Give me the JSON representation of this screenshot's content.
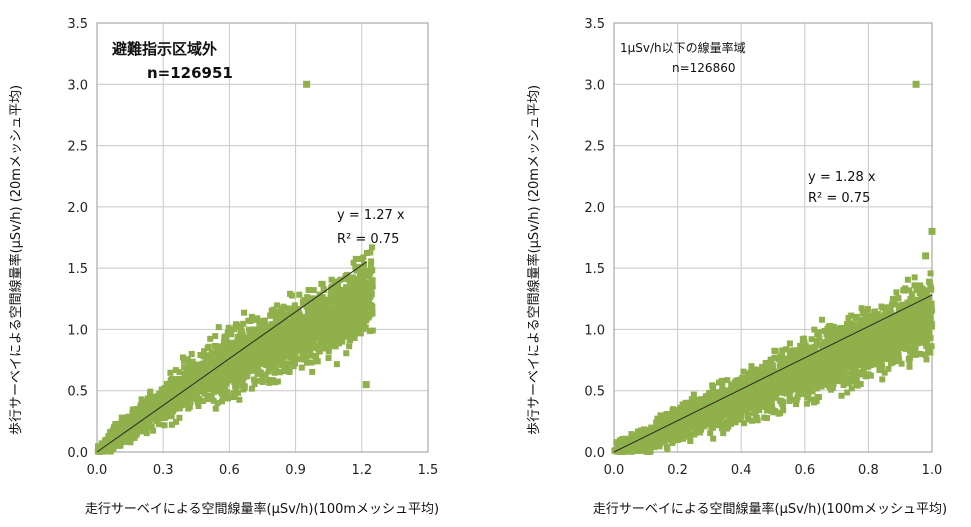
{
  "chart_data": [
    {
      "type": "scatter",
      "title": "避難指示区域外",
      "subtitle": "n=126951",
      "xlabel": "走行サーベイによる空間線量率(μSv/h)(100mメッシュ平均)",
      "ylabel": "歩行サーベイによる空間線量率(μSv/h) (20mメッシュ平均)",
      "xlim": [
        0,
        1.5
      ],
      "ylim": [
        0,
        3.5
      ],
      "xticks": [
        "0.0",
        "0.3",
        "0.6",
        "0.9",
        "1.2",
        "1.5"
      ],
      "yticks": [
        "0.0",
        "0.5",
        "1.0",
        "1.5",
        "2.0",
        "2.5",
        "3.0",
        "3.5"
      ],
      "grid": true,
      "point_color": "#8fb04a",
      "trendline": {
        "slope": 1.27,
        "x_range": [
          0,
          1.22
        ]
      },
      "equation": "y = 1.27 x",
      "r2": "R² = 0.75",
      "outliers": [
        [
          0.95,
          3.0
        ],
        [
          1.22,
          0.55
        ],
        [
          1.2,
          1.5
        ]
      ],
      "cloud_note": "dense cluster of ~126951 points along trend line"
    },
    {
      "type": "scatter",
      "title": "1μSv/h以下の線量率域",
      "subtitle": "n=126860",
      "xlabel": "走行サーベイによる空間線量率(μSv/h)(100mメッシュ平均)",
      "ylabel": "歩行サーベイによる空間線量率(μSv/h) (20mメッシュ平均)",
      "xlim": [
        0,
        1.0
      ],
      "ylim": [
        0,
        3.5
      ],
      "xticks": [
        "0.0",
        "0.2",
        "0.4",
        "0.6",
        "0.8",
        "1.0"
      ],
      "yticks": [
        "0.0",
        "0.5",
        "1.0",
        "1.5",
        "2.0",
        "2.5",
        "3.0",
        "3.5"
      ],
      "grid": true,
      "point_color": "#8fb04a",
      "trendline": {
        "slope": 1.28,
        "x_range": [
          0,
          1.0
        ]
      },
      "equation": "y = 1.28 x",
      "r2": "R² = 0.75",
      "outliers": [
        [
          0.95,
          3.0
        ],
        [
          1.0,
          1.8
        ],
        [
          0.98,
          1.6
        ]
      ],
      "cloud_note": "dense cluster of ~126860 points along trend line"
    }
  ]
}
